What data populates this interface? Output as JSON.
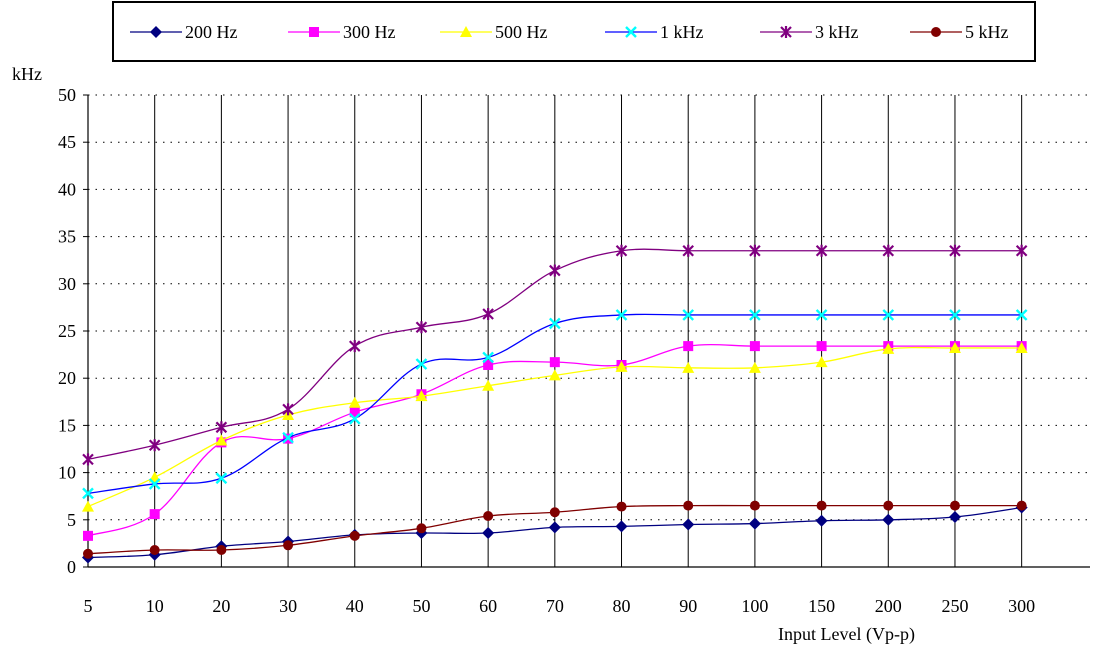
{
  "chart_data": {
    "type": "line",
    "title": "",
    "ylabel": "kHz",
    "xlabel": "Input Level (Vp-p)",
    "ylim": [
      0,
      50
    ],
    "yticks": [
      0,
      5,
      10,
      15,
      20,
      25,
      30,
      35,
      40,
      45,
      50
    ],
    "grid": true,
    "legend_placement": "top",
    "categories": [
      "5",
      "10",
      "20",
      "30",
      "40",
      "50",
      "60",
      "70",
      "80",
      "90",
      "100",
      "150",
      "200",
      "250",
      "300"
    ],
    "series": [
      {
        "name": "200 Hz",
        "color": "#000080",
        "marker": "diamond",
        "values": [
          1.0,
          1.3,
          2.2,
          2.7,
          3.4,
          3.6,
          3.6,
          4.2,
          4.3,
          4.5,
          4.6,
          4.9,
          5.0,
          5.3,
          6.3
        ]
      },
      {
        "name": "300 Hz",
        "color": "#ff00ff",
        "marker": "square",
        "values": [
          3.3,
          5.6,
          13.2,
          13.6,
          16.4,
          18.3,
          21.4,
          21.7,
          21.4,
          23.4,
          23.4,
          23.4,
          23.4,
          23.4,
          23.4
        ]
      },
      {
        "name": "500 Hz",
        "color": "#ffff00",
        "marker": "triangle",
        "values": [
          6.4,
          9.5,
          13.4,
          16.1,
          17.4,
          18.1,
          19.2,
          20.3,
          21.2,
          21.1,
          21.1,
          21.7,
          23.1,
          23.2,
          23.2
        ]
      },
      {
        "name": "1 kHz",
        "color": "#00ffff",
        "line_color": "#0000ff",
        "marker": "x",
        "values": [
          7.8,
          8.8,
          9.4,
          13.7,
          15.7,
          21.5,
          22.2,
          25.8,
          26.7,
          26.7,
          26.7,
          26.7,
          26.7,
          26.7,
          26.7
        ]
      },
      {
        "name": "3 kHz",
        "color": "#800080",
        "marker": "star",
        "values": [
          11.4,
          12.9,
          14.8,
          16.7,
          23.4,
          25.4,
          26.8,
          31.4,
          33.5,
          33.5,
          33.5,
          33.5,
          33.5,
          33.5,
          33.5
        ]
      },
      {
        "name": "5 kHz",
        "color": "#800000",
        "marker": "circle",
        "values": [
          1.4,
          1.8,
          1.8,
          2.3,
          3.3,
          4.1,
          5.4,
          5.8,
          6.4,
          6.5,
          6.5,
          6.5,
          6.5,
          6.5,
          6.5
        ]
      }
    ]
  }
}
